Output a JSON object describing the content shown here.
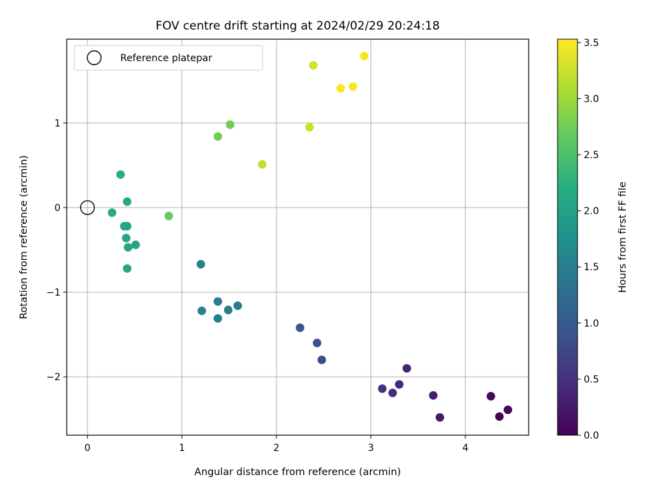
{
  "chart_data": {
    "type": "scatter",
    "title": "FOV centre drift starting at 2024/02/29 20:24:18",
    "xlabel": "Angular distance from reference (arcmin)",
    "ylabel": "Rotation from reference (arcmin)",
    "xlim": [
      -0.22,
      4.67
    ],
    "ylim": [
      -2.69,
      1.99
    ],
    "xticks": [
      0,
      1,
      2,
      3,
      4
    ],
    "yticks": [
      -2,
      -1,
      0,
      1
    ],
    "grid": true,
    "legend": {
      "position": "top-left",
      "entries": [
        "Reference platepar"
      ]
    },
    "reference_point": {
      "x": 0,
      "y": 0,
      "label": "Reference platepar"
    },
    "colorbar": {
      "label": "Hours from first FF file",
      "min": 0,
      "max": 3.53,
      "colormap": "viridis",
      "ticks": [
        "0.0",
        "0.5",
        "1.0",
        "1.5",
        "2.0",
        "2.5",
        "3.0",
        "3.5"
      ]
    },
    "points": [
      {
        "x": 4.36,
        "y": -2.47,
        "c": 0.0
      },
      {
        "x": 4.45,
        "y": -2.39,
        "c": 0.05
      },
      {
        "x": 4.27,
        "y": -2.23,
        "c": 0.1
      },
      {
        "x": 3.73,
        "y": -2.48,
        "c": 0.25
      },
      {
        "x": 3.66,
        "y": -2.22,
        "c": 0.3
      },
      {
        "x": 3.38,
        "y": -1.9,
        "c": 0.35
      },
      {
        "x": 3.3,
        "y": -2.09,
        "c": 0.4
      },
      {
        "x": 3.23,
        "y": -2.19,
        "c": 0.45
      },
      {
        "x": 3.12,
        "y": -2.14,
        "c": 0.5
      },
      {
        "x": 2.48,
        "y": -1.8,
        "c": 0.85
      },
      {
        "x": 2.43,
        "y": -1.6,
        "c": 0.9
      },
      {
        "x": 2.25,
        "y": -1.42,
        "c": 0.95
      },
      {
        "x": 1.59,
        "y": -1.16,
        "c": 1.45
      },
      {
        "x": 1.49,
        "y": -1.21,
        "c": 1.48
      },
      {
        "x": 1.38,
        "y": -1.11,
        "c": 1.5
      },
      {
        "x": 1.38,
        "y": -1.31,
        "c": 1.52
      },
      {
        "x": 1.21,
        "y": -1.22,
        "c": 1.55
      },
      {
        "x": 1.2,
        "y": -0.67,
        "c": 1.6
      },
      {
        "x": 0.42,
        "y": -0.72,
        "c": 2.05
      },
      {
        "x": 0.43,
        "y": -0.47,
        "c": 2.05
      },
      {
        "x": 0.51,
        "y": -0.44,
        "c": 2.05
      },
      {
        "x": 0.41,
        "y": -0.36,
        "c": 2.05
      },
      {
        "x": 0.39,
        "y": -0.22,
        "c": 2.05
      },
      {
        "x": 0.42,
        "y": -0.22,
        "c": 2.1
      },
      {
        "x": 0.26,
        "y": -0.06,
        "c": 2.15
      },
      {
        "x": 0.42,
        "y": 0.07,
        "c": 2.15
      },
      {
        "x": 0.35,
        "y": 0.39,
        "c": 2.2
      },
      {
        "x": 0.86,
        "y": -0.1,
        "c": 2.7
      },
      {
        "x": 1.38,
        "y": 0.84,
        "c": 2.75
      },
      {
        "x": 1.51,
        "y": 0.98,
        "c": 2.75
      },
      {
        "x": 1.85,
        "y": 0.51,
        "c": 3.2
      },
      {
        "x": 2.35,
        "y": 0.95,
        "c": 3.25
      },
      {
        "x": 2.39,
        "y": 1.68,
        "c": 3.3
      },
      {
        "x": 2.68,
        "y": 1.41,
        "c": 3.5
      },
      {
        "x": 2.81,
        "y": 1.43,
        "c": 3.5
      },
      {
        "x": 2.93,
        "y": 1.79,
        "c": 3.5
      }
    ]
  }
}
